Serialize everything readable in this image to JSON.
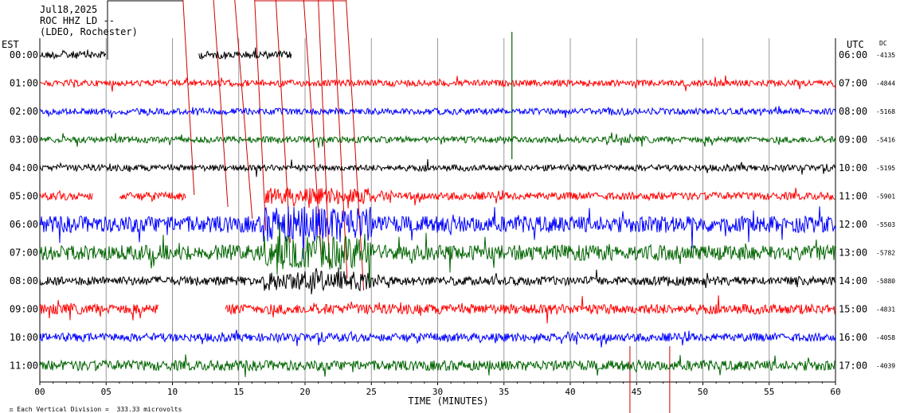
{
  "header": {
    "date": "Jul18,2025",
    "station": "ROC HHZ LD --",
    "network": "(LDEO, Rochester)"
  },
  "footer": {
    "scale_note": "Each Vertical Division =  333.33 microvolts"
  },
  "chart_data": {
    "type": "line",
    "title": "",
    "left_axis_title": "EST",
    "right_axis_title": "UTC",
    "dc_axis_title": "DC",
    "xlabel": "TIME (MINUTES)",
    "xlim": [
      0,
      60
    ],
    "x_ticks": [
      "00",
      "05",
      "10",
      "15",
      "20",
      "25",
      "30",
      "35",
      "40",
      "45",
      "50",
      "55",
      "60"
    ],
    "grid": true,
    "colors": {
      "black": "#000000",
      "red": "#ff0000",
      "blue": "#0000ff",
      "green": "#006400",
      "event": "#cc0000"
    },
    "rows": [
      {
        "est": "00:00",
        "utc": "06:00",
        "dc": "-4135",
        "color": "black",
        "amp": 1.2,
        "segments": [
          [
            0,
            5
          ],
          [
            12,
            19
          ]
        ]
      },
      {
        "est": "01:00",
        "utc": "07:00",
        "dc": "-4844",
        "color": "red",
        "amp": 1.0,
        "segments": [
          [
            0,
            60
          ]
        ]
      },
      {
        "est": "02:00",
        "utc": "08:00",
        "dc": "-5168",
        "color": "blue",
        "amp": 1.0,
        "segments": [
          [
            0,
            60
          ]
        ]
      },
      {
        "est": "03:00",
        "utc": "09:00",
        "dc": "-5416",
        "color": "green",
        "amp": 1.0,
        "segments": [
          [
            0,
            60
          ]
        ]
      },
      {
        "est": "04:00",
        "utc": "10:00",
        "dc": "-5195",
        "color": "black",
        "amp": 1.0,
        "segments": [
          [
            0,
            60
          ]
        ]
      },
      {
        "est": "05:00",
        "utc": "11:00",
        "dc": "-5901",
        "color": "red",
        "amp": 1.2,
        "segments": [
          [
            0,
            4
          ],
          [
            6,
            11
          ],
          [
            17,
            60
          ]
        ]
      },
      {
        "est": "06:00",
        "utc": "12:00",
        "dc": "-5503",
        "color": "blue",
        "amp": 2.6,
        "segments": [
          [
            0,
            60
          ]
        ]
      },
      {
        "est": "07:00",
        "utc": "13:00",
        "dc": "-5782",
        "color": "green",
        "amp": 2.4,
        "segments": [
          [
            0,
            60
          ]
        ]
      },
      {
        "est": "08:00",
        "utc": "14:00",
        "dc": "-5880",
        "color": "black",
        "amp": 1.4,
        "segments": [
          [
            0,
            60
          ]
        ]
      },
      {
        "est": "09:00",
        "utc": "15:00",
        "dc": "-4831",
        "color": "red",
        "amp": 1.6,
        "segments": [
          [
            0,
            9
          ],
          [
            14,
            60
          ]
        ]
      },
      {
        "est": "10:00",
        "utc": "16:00",
        "dc": "-4058",
        "color": "blue",
        "amp": 1.3,
        "segments": [
          [
            0,
            60
          ]
        ]
      },
      {
        "est": "11:00",
        "utc": "17:00",
        "dc": "-4039",
        "color": "green",
        "amp": 1.6,
        "segments": [
          [
            0,
            60
          ]
        ]
      }
    ],
    "event_minutes": [
      10.8,
      13.1,
      14.7,
      16.2,
      17.8,
      19.9,
      21.0,
      22.1,
      23.1
    ],
    "tail_marks_minutes": [
      44.5,
      47.5
    ]
  }
}
